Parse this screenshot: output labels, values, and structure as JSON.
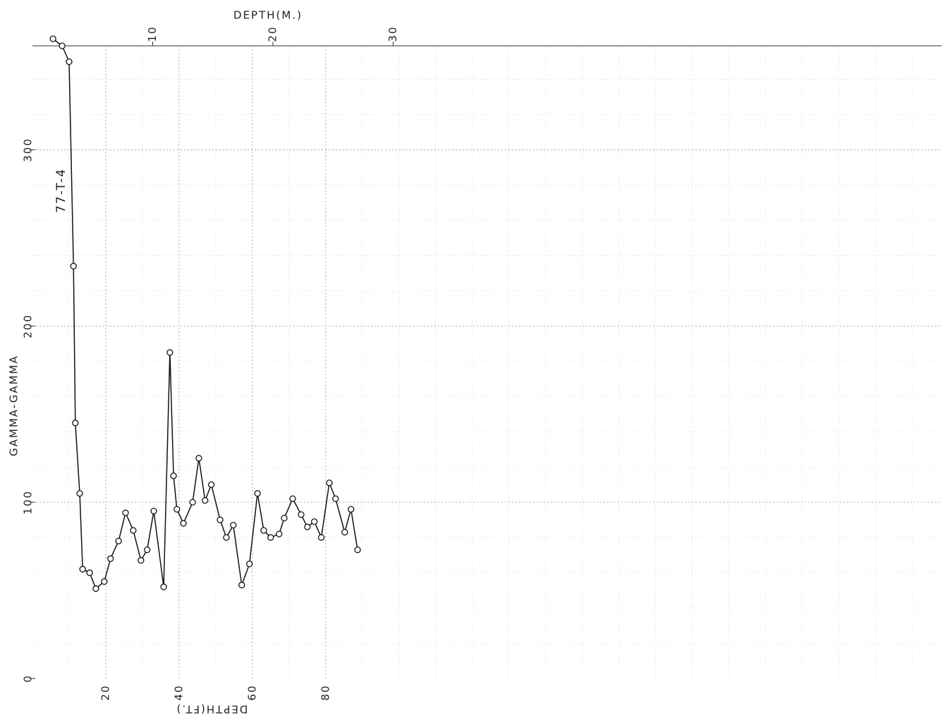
{
  "chart_data": {
    "type": "line",
    "x_label": "DEPTH(FT.)",
    "x2_label": "DEPTH(M.)",
    "y_label": "GAMMA-GAMMA",
    "annotation": "77-T-4",
    "xlim": [
      0,
      248
    ],
    "xticks": [
      20,
      40,
      60,
      80
    ],
    "x2lim": [
      0,
      75.6
    ],
    "x2ticks": [
      10,
      20,
      30
    ],
    "ylim": [
      0,
      359
    ],
    "yticks": [
      0,
      100,
      200,
      300
    ],
    "grid": true,
    "series": [
      {
        "color": "#111111",
        "x": [
          5.6,
          8.1,
          10.0,
          11.2,
          11.7,
          12.9,
          13.7,
          15.6,
          17.3,
          19.6,
          21.3,
          23.5,
          25.4,
          27.5,
          29.6,
          31.3,
          33.1,
          35.8,
          37.5,
          38.5,
          39.4,
          41.2,
          43.7,
          45.4,
          47.1,
          48.8,
          51.2,
          52.9,
          54.8,
          57.1,
          59.2,
          61.4,
          63.1,
          65.0,
          67.3,
          68.7,
          71.0,
          73.3,
          75.0,
          76.9,
          78.8,
          81.0,
          82.7,
          85.2,
          86.9,
          88.7
        ],
        "values": [
          363,
          359,
          350,
          234,
          145,
          105,
          62,
          60,
          51,
          55,
          68,
          78,
          94,
          84,
          67,
          73,
          95,
          52,
          185,
          115,
          96,
          88,
          100,
          125,
          101,
          110,
          90,
          80,
          87,
          53,
          65,
          105,
          84,
          80,
          82,
          91,
          102,
          93,
          86,
          89,
          80,
          111,
          102,
          83,
          96,
          73
        ]
      }
    ]
  }
}
